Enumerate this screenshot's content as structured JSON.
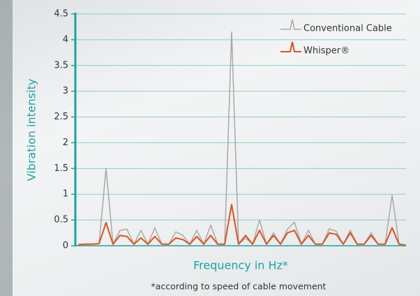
{
  "chart_data": {
    "type": "line",
    "ylabel": "Vibration intensity",
    "xlabel": "Frequency in Hz*",
    "footnote": "*according to speed of cable movement",
    "categories": [
      null,
      null,
      null,
      null,
      null,
      null,
      null,
      null,
      null,
      null,
      null,
      null,
      null,
      null,
      null,
      null,
      null,
      null,
      null,
      null,
      null,
      null,
      null,
      null,
      null,
      null,
      null,
      null,
      null,
      null,
      null,
      null,
      null,
      null,
      null,
      null,
      null,
      null,
      null,
      null,
      null,
      null,
      null,
      null,
      null,
      null,
      null,
      null
    ],
    "series": [
      {
        "name": "Conventional Cable",
        "color": "#a8a8a8",
        "values": [
          0.02,
          0.03,
          0.03,
          0.04,
          1.5,
          0.03,
          0.3,
          0.32,
          0.03,
          0.3,
          0.03,
          0.35,
          0.03,
          0.03,
          0.27,
          0.2,
          0.03,
          0.3,
          0.03,
          0.4,
          0.03,
          0.03,
          4.15,
          0.03,
          0.15,
          0.03,
          0.5,
          0.03,
          0.25,
          0.03,
          0.32,
          0.46,
          0.03,
          0.3,
          0.03,
          0.03,
          0.33,
          0.28,
          0.03,
          0.3,
          0.03,
          0.03,
          0.25,
          0.03,
          0.03,
          0.98,
          0.03,
          0.01
        ]
      },
      {
        "name": "Whisper®",
        "color": "#e0521c",
        "values": [
          0.02,
          0.03,
          0.03,
          0.04,
          0.45,
          0.03,
          0.2,
          0.18,
          0.03,
          0.15,
          0.03,
          0.18,
          0.03,
          0.03,
          0.15,
          0.12,
          0.03,
          0.18,
          0.03,
          0.2,
          0.03,
          0.03,
          0.8,
          0.03,
          0.2,
          0.03,
          0.3,
          0.03,
          0.2,
          0.03,
          0.25,
          0.3,
          0.03,
          0.2,
          0.03,
          0.03,
          0.25,
          0.22,
          0.03,
          0.25,
          0.03,
          0.03,
          0.2,
          0.03,
          0.03,
          0.35,
          0.03,
          0.01
        ]
      }
    ],
    "ylim": [
      0,
      4.5
    ],
    "yticks": [
      0,
      0.5,
      1,
      1.5,
      2,
      2.5,
      3,
      3.5,
      4,
      4.5
    ],
    "grid": true,
    "axis_color": "#1aa3a3",
    "legend": "top-right"
  }
}
